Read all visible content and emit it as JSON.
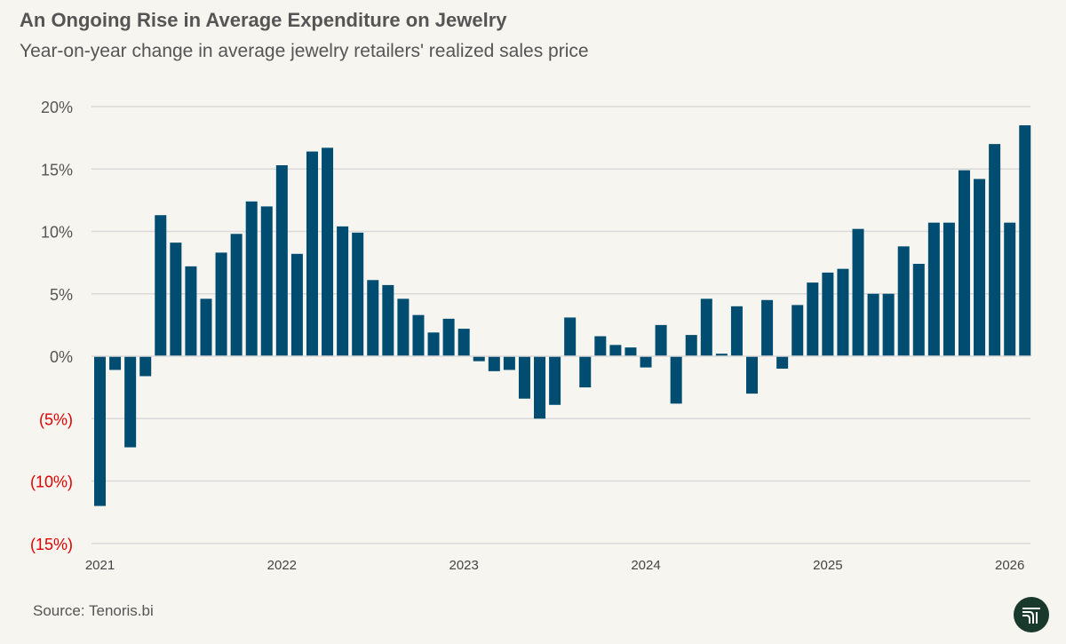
{
  "title": "An Ongoing Rise in Average Expenditure on Jewelry",
  "subtitle": "Year-on-year change in average jewelry retailers' realized sales price",
  "source": "Source: Tenoris.bi",
  "logo_text": "Tenoris",
  "colors": {
    "bar": "#004d71",
    "negative_label": "#e00000",
    "grid": "#d9d9d9",
    "background": "#f6f5ef"
  },
  "chart_data": {
    "type": "bar",
    "title": "An Ongoing Rise in Average Expenditure on Jewelry",
    "subtitle": "Year-on-year change in average jewelry retailers' realized sales price",
    "xlabel": "",
    "ylabel": "",
    "ylim": [
      -15,
      20
    ],
    "grid": true,
    "y_ticks": [
      20,
      15,
      10,
      5,
      0,
      -5,
      -10,
      -15
    ],
    "y_tick_labels": [
      "20%",
      "15%",
      "10%",
      "5%",
      "0%",
      "(5%)",
      "(10%)",
      "(15%)"
    ],
    "x_tick_labels": [
      "2021",
      "2022",
      "2023",
      "2024",
      "2025",
      "2026"
    ],
    "start": "2021-01",
    "frequency": "monthly",
    "categories": [
      "2021-01",
      "2021-02",
      "2021-03",
      "2021-04",
      "2021-05",
      "2021-06",
      "2021-07",
      "2021-08",
      "2021-09",
      "2021-10",
      "2021-11",
      "2021-12",
      "2022-01",
      "2022-02",
      "2022-03",
      "2022-04",
      "2022-05",
      "2022-06",
      "2022-07",
      "2022-08",
      "2022-09",
      "2022-10",
      "2022-11",
      "2022-12",
      "2023-01",
      "2023-02",
      "2023-03",
      "2023-04",
      "2023-05",
      "2023-06",
      "2023-07",
      "2023-08",
      "2023-09",
      "2023-10",
      "2023-11",
      "2023-12",
      "2024-01",
      "2024-02",
      "2024-03",
      "2024-04",
      "2024-05",
      "2024-06",
      "2024-07",
      "2024-08",
      "2024-09",
      "2024-10",
      "2024-11",
      "2024-12",
      "2025-01",
      "2025-02",
      "2025-03",
      "2025-04",
      "2025-05",
      "2025-06",
      "2025-07",
      "2025-08",
      "2025-09",
      "2025-10",
      "2025-11",
      "2025-12",
      "2026-01",
      "2026-02"
    ],
    "values": [
      -12.0,
      -1.1,
      -7.3,
      -1.6,
      11.3,
      9.1,
      7.2,
      4.6,
      8.3,
      9.8,
      12.4,
      12.0,
      15.3,
      8.2,
      16.4,
      16.7,
      10.4,
      9.9,
      6.1,
      5.7,
      4.6,
      3.3,
      1.9,
      3.0,
      2.2,
      -0.4,
      -1.2,
      -1.1,
      -3.4,
      -5.0,
      -3.9,
      3.1,
      -2.5,
      1.6,
      0.9,
      0.7,
      -0.9,
      2.5,
      -3.8,
      1.7,
      4.6,
      0.2,
      4.0,
      -3.0,
      4.5,
      -1.0,
      4.1,
      5.9,
      6.7,
      7.0,
      10.2,
      5.0,
      5.0,
      8.8,
      7.4,
      10.7,
      10.7,
      14.9,
      14.2,
      17.0,
      10.7,
      18.5
    ]
  }
}
